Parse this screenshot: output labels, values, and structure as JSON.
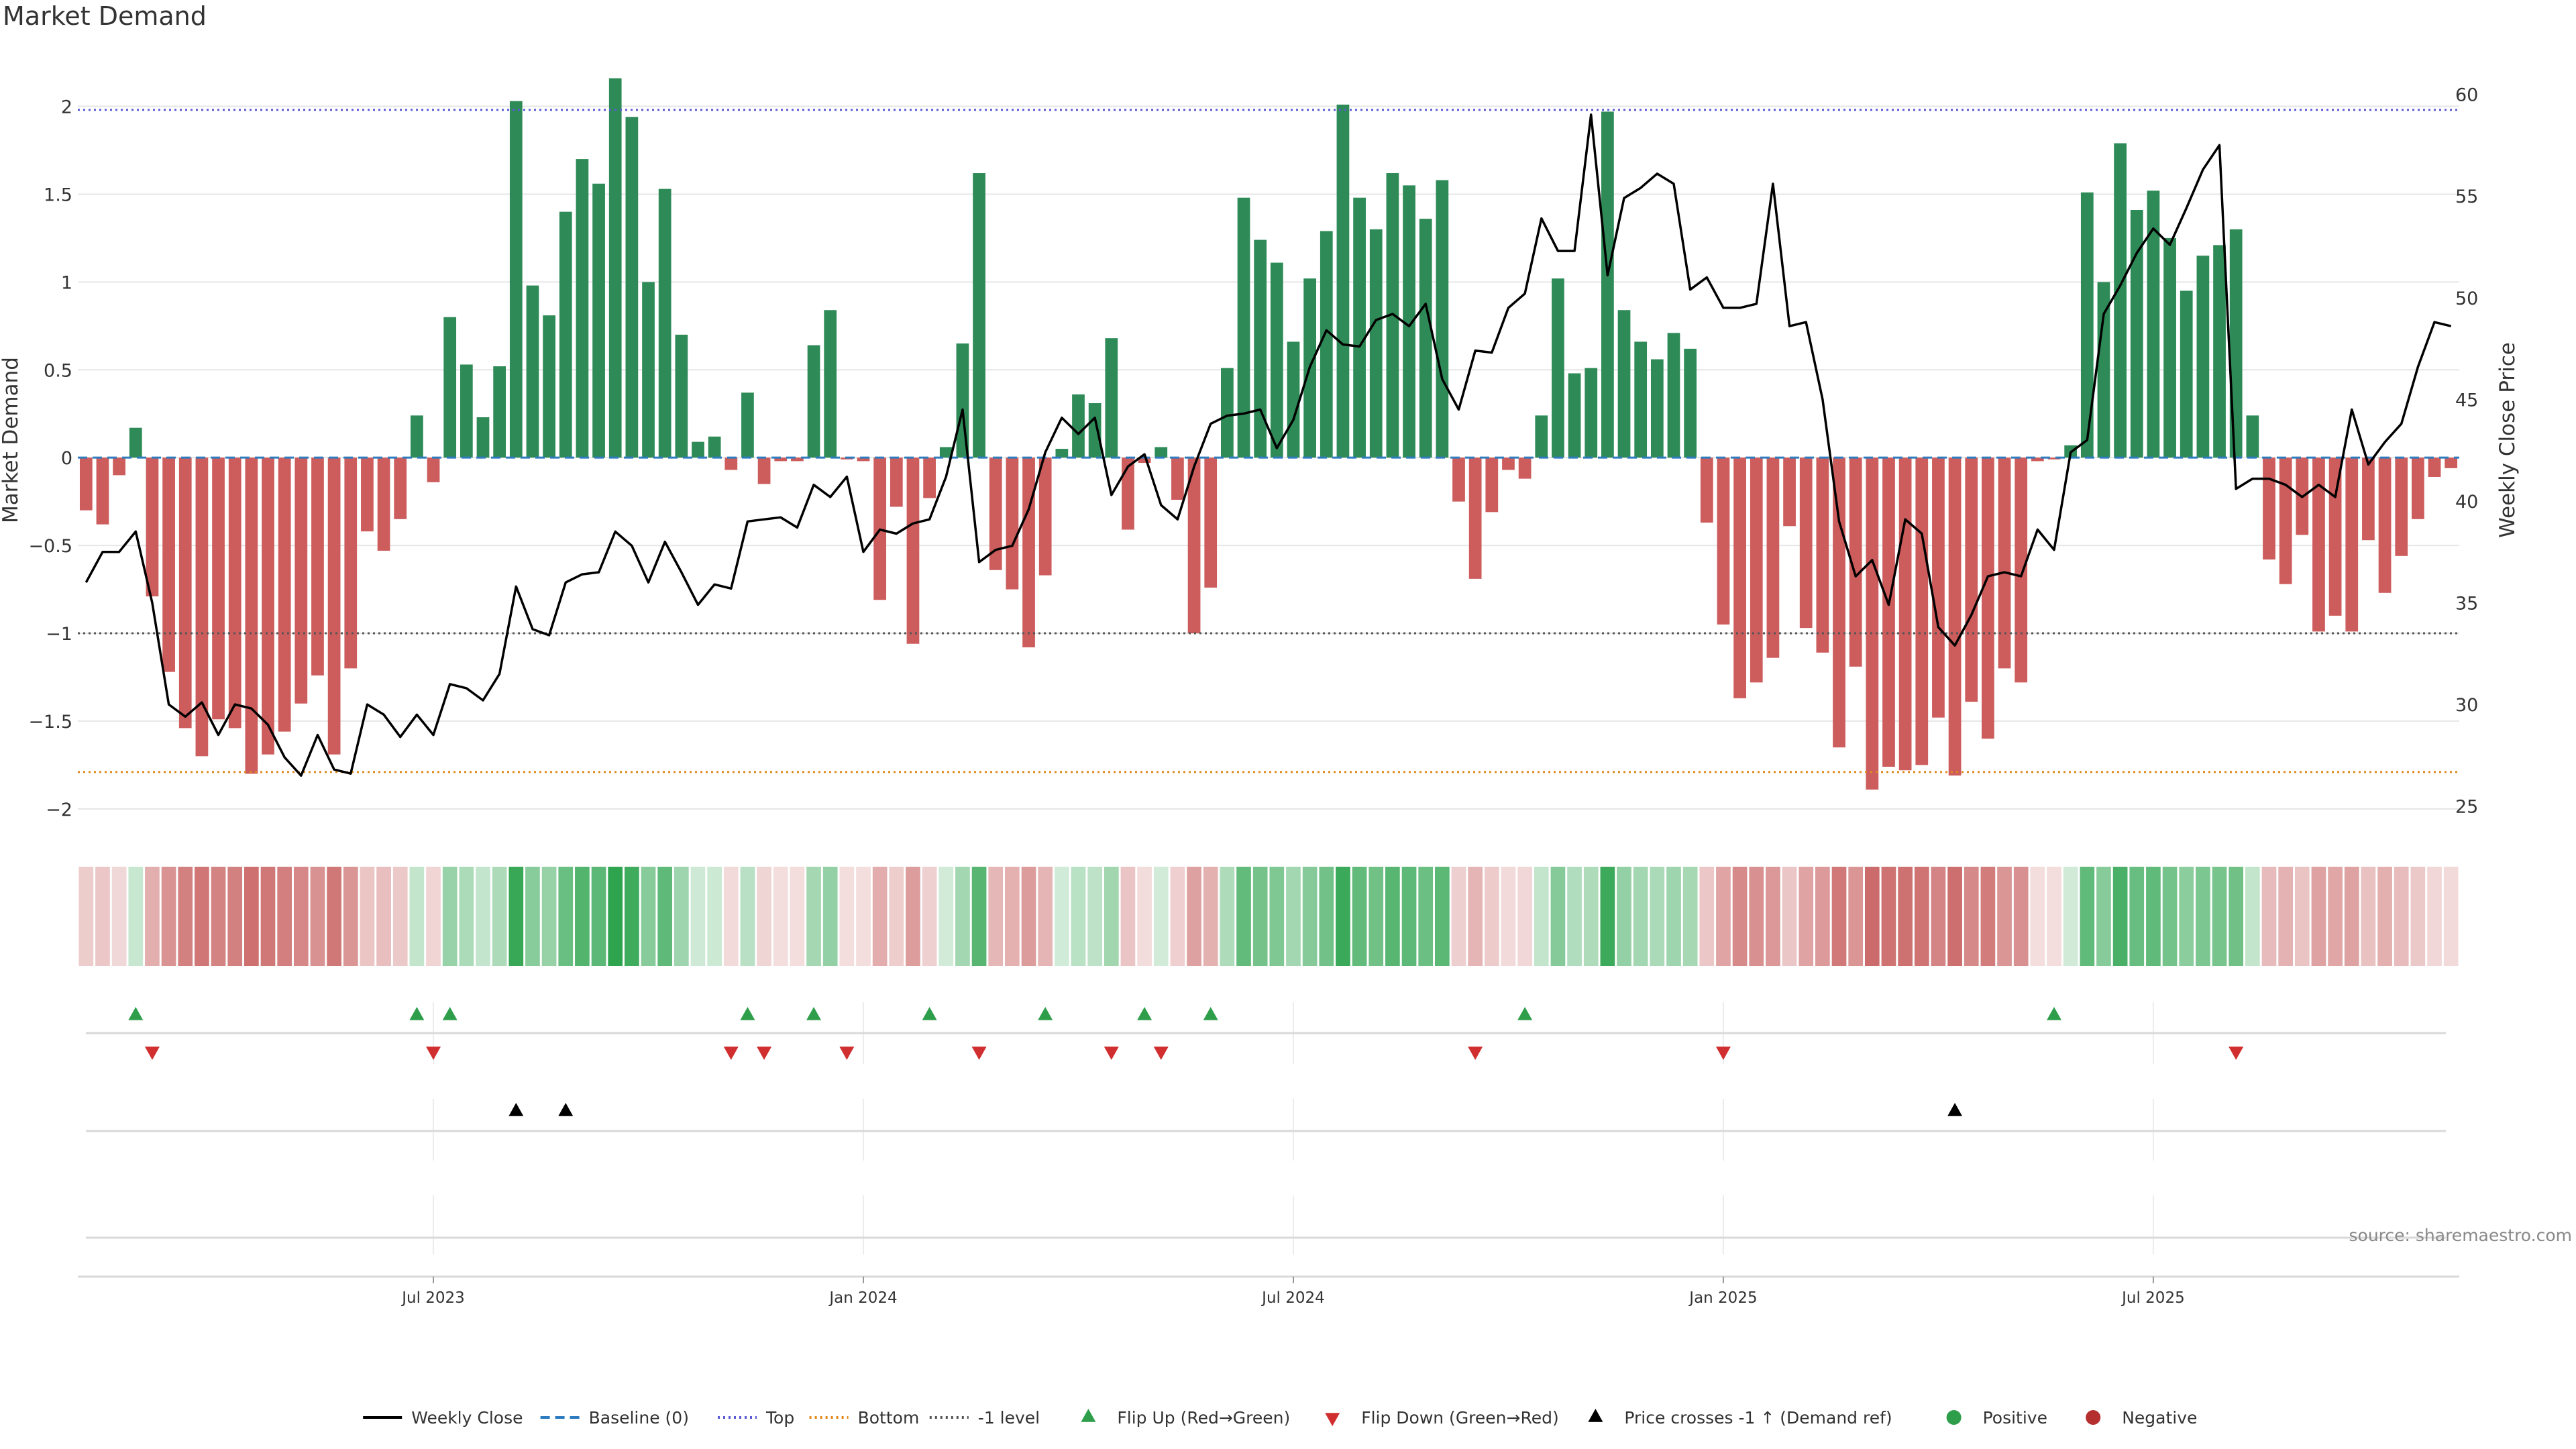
{
  "title": "Market Demand",
  "source": "source: sharemaestro.com",
  "chart_data": {
    "type": "bar",
    "ylabel_left": "Market Demand",
    "ylabel_right": "Weekly Close Price",
    "ylim_left": [
      -2.1,
      2.3
    ],
    "ylim_right": [
      24,
      62
    ],
    "left_ticks": [
      {
        "v": 2,
        "t": "2"
      },
      {
        "v": 1.5,
        "t": "1.5"
      },
      {
        "v": 1,
        "t": "1"
      },
      {
        "v": 0.5,
        "t": "0.5"
      },
      {
        "v": 0,
        "t": "0"
      },
      {
        "v": -0.5,
        "t": "−0.5"
      },
      {
        "v": -1,
        "t": "−1"
      },
      {
        "v": -1.5,
        "t": "−1.5"
      },
      {
        "v": -2,
        "t": "−2"
      }
    ],
    "right_ticks": [
      60,
      55,
      50,
      45,
      40,
      35,
      30,
      25
    ],
    "x_ticks": [
      {
        "i": 21,
        "t": "Jul 2023"
      },
      {
        "i": 47,
        "t": "Jan 2024"
      },
      {
        "i": 73,
        "t": "Jul 2024"
      },
      {
        "i": 99,
        "t": "Jan 2025"
      },
      {
        "i": 125,
        "t": "Jul 2025"
      }
    ],
    "reference_lines": {
      "baseline": 0,
      "top": 1.98,
      "bottom": -1.79,
      "minus_one": -1
    },
    "demand": [
      -0.3,
      -0.38,
      -0.1,
      0.17,
      -0.79,
      -1.22,
      -1.54,
      -1.7,
      -1.49,
      -1.54,
      -1.8,
      -1.69,
      -1.56,
      -1.4,
      -1.24,
      -1.69,
      -1.2,
      -0.42,
      -0.53,
      -0.35,
      0.24,
      -0.14,
      0.8,
      0.53,
      0.23,
      0.52,
      2.03,
      0.98,
      0.81,
      1.4,
      1.7,
      1.56,
      2.16,
      1.94,
      1.0,
      1.53,
      0.7,
      0.09,
      0.12,
      -0.07,
      0.37,
      -0.15,
      -0.02,
      -0.02,
      0.64,
      0.84,
      -0.01,
      -0.02,
      -0.81,
      -0.28,
      -1.06,
      -0.23,
      0.06,
      0.65,
      1.62,
      -0.64,
      -0.75,
      -1.08,
      -0.67,
      0.05,
      0.36,
      0.31,
      0.68,
      -0.41,
      -0.03,
      0.06,
      -0.24,
      -1.0,
      -0.74,
      0.51,
      1.48,
      1.24,
      1.11,
      0.66,
      1.02,
      1.29,
      2.01,
      1.48,
      1.3,
      1.62,
      1.55,
      1.36,
      1.58,
      -0.25,
      -0.69,
      -0.31,
      -0.07,
      -0.12,
      0.24,
      1.02,
      0.48,
      0.51,
      1.97,
      0.84,
      0.66,
      0.56,
      0.71,
      0.62,
      -0.37,
      -0.95,
      -1.37,
      -1.28,
      -1.14,
      -0.39,
      -0.97,
      -1.11,
      -1.65,
      -1.19,
      -1.89,
      -1.76,
      -1.78,
      -1.75,
      -1.48,
      -1.81,
      -1.39,
      -1.6,
      -1.2,
      -1.28,
      -0.02,
      -0.01,
      0.07,
      1.51,
      1.0,
      1.79,
      1.41,
      1.52,
      1.25,
      0.95,
      1.15,
      1.21,
      1.3,
      0.24,
      -0.58,
      -0.72,
      -0.44,
      -0.99,
      -0.9,
      -0.99,
      -0.47,
      -0.77,
      -0.56,
      -0.35,
      -0.11,
      -0.06
    ],
    "weekly_close": [
      36,
      37.5,
      37.5,
      38.5,
      35,
      30,
      29.4,
      30.1,
      28.5,
      30,
      29.8,
      29,
      27.4,
      26.5,
      28.5,
      26.8,
      26.6,
      30,
      29.5,
      28.4,
      29.5,
      28.5,
      31,
      30.8,
      30.2,
      31.5,
      35.8,
      33.7,
      33.4,
      36,
      36.4,
      36.5,
      38.5,
      37.8,
      36,
      38,
      36.5,
      34.9,
      35.9,
      35.7,
      39,
      39.1,
      39.2,
      38.7,
      40.8,
      40.2,
      41.2,
      37.5,
      38.6,
      38.4,
      38.9,
      39.1,
      41.2,
      44.5,
      37,
      37.6,
      37.8,
      39.6,
      42.4,
      44.1,
      43.3,
      44.1,
      40.3,
      41.7,
      42.3,
      39.8,
      39.1,
      41.7,
      43.8,
      44.2,
      44.3,
      44.5,
      42.6,
      44,
      46.6,
      48.4,
      47.7,
      47.6,
      48.9,
      49.2,
      48.6,
      49.7,
      46,
      44.5,
      47.4,
      47.3,
      49.5,
      50.2,
      53.9,
      52.3,
      52.3,
      59,
      51.1,
      54.9,
      55.4,
      56.1,
      55.6,
      50.4,
      51,
      49.5,
      49.5,
      49.7,
      55.6,
      48.6,
      48.8,
      45,
      39,
      36.3,
      37.1,
      34.9,
      39.1,
      38.4,
      33.8,
      32.9,
      34.4,
      36.3,
      36.5,
      36.3,
      38.6,
      37.6,
      42.4,
      43,
      49.2,
      50.6,
      52.2,
      53.4,
      52.6,
      54.4,
      56.3,
      57.5,
      40.6,
      41.1,
      41.1,
      40.8,
      40.2,
      40.8,
      40.2,
      44.5,
      41.8,
      42.9,
      43.8,
      46.6,
      48.8,
      48.6
    ],
    "flip_up_idx": [
      3,
      20,
      22,
      40,
      44,
      51,
      58,
      64,
      68,
      87,
      119
    ],
    "flip_down_idx": [
      4,
      21,
      39,
      41,
      46,
      54,
      62,
      65,
      84,
      99,
      130
    ],
    "price_cross_idx": [
      26,
      29,
      113
    ],
    "legend": [
      {
        "kind": "line",
        "color": "#000000",
        "dash": "",
        "label": "Weekly Close"
      },
      {
        "kind": "line",
        "color": "#2e7bbf",
        "dash": "14 8",
        "label": "Baseline (0)"
      },
      {
        "kind": "line",
        "color": "#5b5bd6",
        "dash": "3 5",
        "label": "Top"
      },
      {
        "kind": "line",
        "color": "#e08a1e",
        "dash": "3 5",
        "label": "Bottom"
      },
      {
        "kind": "line",
        "color": "#555555",
        "dash": "3 5",
        "label": "-1 level"
      },
      {
        "kind": "up",
        "color": "#2e9e4a",
        "label": "Flip Up (Red→Green)"
      },
      {
        "kind": "down",
        "color": "#d12f2f",
        "label": "Flip Down (Green→Red)"
      },
      {
        "kind": "up",
        "color": "#000000",
        "label": "Price crosses -1 ↑ (Demand ref)"
      },
      {
        "kind": "dot",
        "color": "#2e9e4a",
        "label": "Positive"
      },
      {
        "kind": "dot",
        "color": "#b52f2f",
        "label": "Negative"
      }
    ],
    "colors": {
      "positive": "#2e8b57",
      "negative": "#cd5c5c",
      "price": "#000000"
    }
  }
}
